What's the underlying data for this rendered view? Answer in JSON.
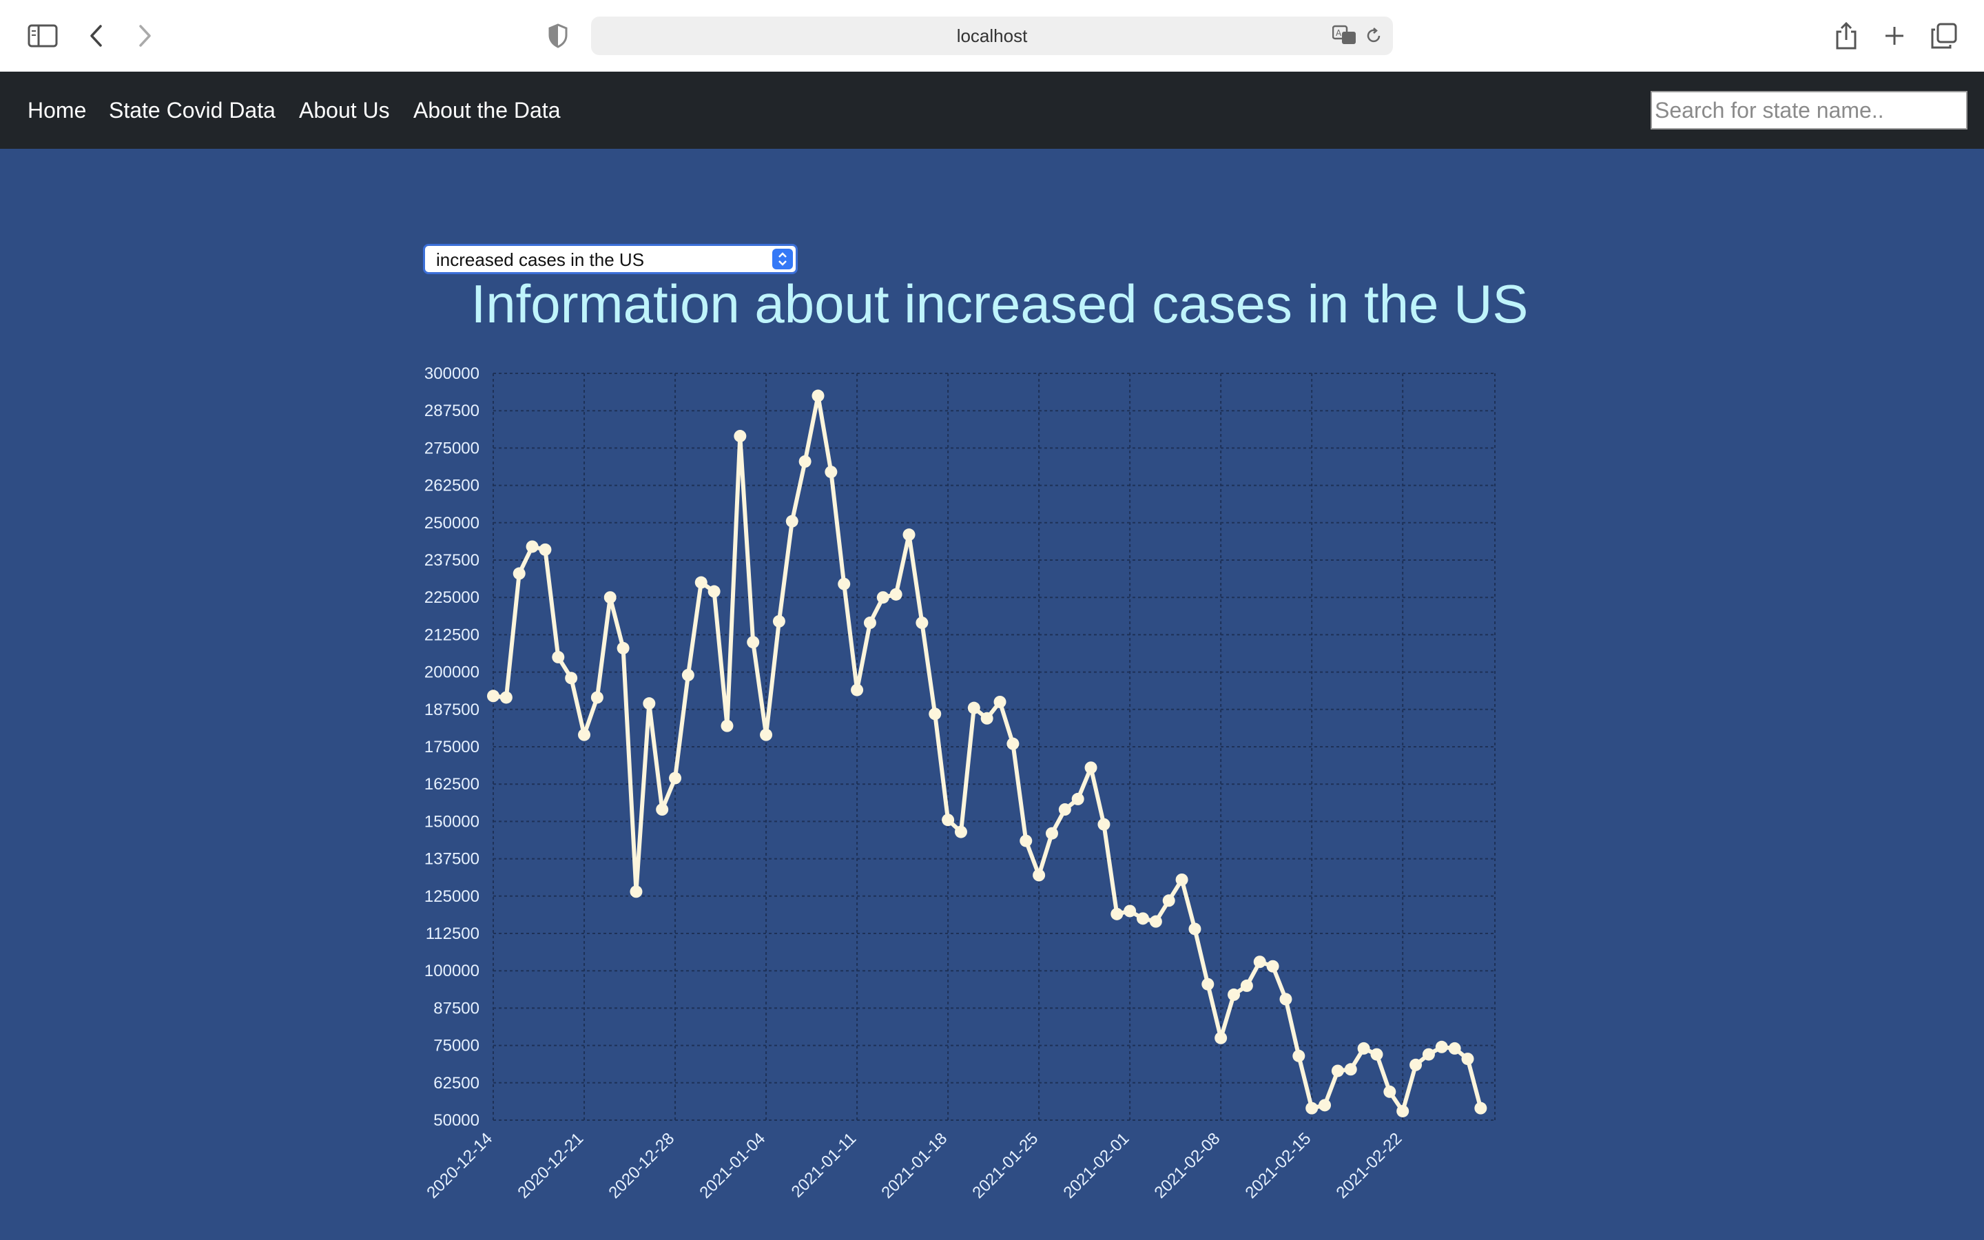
{
  "browser": {
    "url": "localhost"
  },
  "nav": {
    "links": [
      "Home",
      "State Covid Data",
      "About Us",
      "About the Data"
    ],
    "search_placeholder": "Search for state name.."
  },
  "selector": {
    "selected": "increased cases in the US"
  },
  "page": {
    "title": "Information about increased cases in the US"
  },
  "colors": {
    "background": "#2f4d84",
    "navbar": "#212529",
    "title": "#bff4fb",
    "line": "#fcf5dc",
    "tick": "#e6f1ff"
  },
  "chart_data": {
    "type": "line",
    "title": "",
    "xlabel": "",
    "ylabel": "",
    "ylim": [
      50000,
      300000
    ],
    "y_ticks": [
      50000,
      62500,
      75000,
      87500,
      100000,
      112500,
      125000,
      137500,
      150000,
      162500,
      175000,
      187500,
      200000,
      212500,
      225000,
      237500,
      250000,
      262500,
      275000,
      287500,
      300000
    ],
    "x_ticks": [
      "2020-12-14",
      "2020-12-21",
      "2020-12-28",
      "2021-01-04",
      "2021-01-11",
      "2021-01-18",
      "2021-01-25",
      "2021-02-01",
      "2021-02-08",
      "2021-02-15",
      "2021-02-22"
    ],
    "grid": true,
    "series": [
      {
        "name": "",
        "x": [
          "2020-12-14",
          "2020-12-15",
          "2020-12-16",
          "2020-12-17",
          "2020-12-18",
          "2020-12-19",
          "2020-12-20",
          "2020-12-21",
          "2020-12-22",
          "2020-12-23",
          "2020-12-24",
          "2020-12-25",
          "2020-12-26",
          "2020-12-27",
          "2020-12-28",
          "2020-12-29",
          "2020-12-30",
          "2020-12-31",
          "2021-01-01",
          "2021-01-02",
          "2021-01-03",
          "2021-01-04",
          "2021-01-05",
          "2021-01-06",
          "2021-01-07",
          "2021-01-08",
          "2021-01-09",
          "2021-01-10",
          "2021-01-11",
          "2021-01-12",
          "2021-01-13",
          "2021-01-14",
          "2021-01-15",
          "2021-01-16",
          "2021-01-17",
          "2021-01-18",
          "2021-01-19",
          "2021-01-20",
          "2021-01-21",
          "2021-01-22",
          "2021-01-23",
          "2021-01-24",
          "2021-01-25",
          "2021-01-26",
          "2021-01-27",
          "2021-01-28",
          "2021-01-29",
          "2021-01-30",
          "2021-01-31",
          "2021-02-01",
          "2021-02-02",
          "2021-02-03",
          "2021-02-04",
          "2021-02-05",
          "2021-02-06",
          "2021-02-07",
          "2021-02-08",
          "2021-02-09",
          "2021-02-10",
          "2021-02-11",
          "2021-02-12",
          "2021-02-13",
          "2021-02-14",
          "2021-02-15",
          "2021-02-16",
          "2021-02-17",
          "2021-02-18",
          "2021-02-19",
          "2021-02-20",
          "2021-02-21",
          "2021-02-22",
          "2021-02-23",
          "2021-02-24",
          "2021-02-25",
          "2021-02-26",
          "2021-02-27",
          "2021-02-28"
        ],
        "values": [
          192000,
          191500,
          233000,
          242000,
          241000,
          205000,
          198000,
          179000,
          191500,
          225000,
          208000,
          126500,
          189500,
          154000,
          164500,
          199000,
          230000,
          227000,
          182000,
          279000,
          210000,
          179000,
          217000,
          250500,
          270500,
          292500,
          267000,
          229500,
          194000,
          216500,
          225000,
          226000,
          246000,
          216500,
          186000,
          150500,
          146500,
          188000,
          184500,
          190000,
          176000,
          143500,
          132000,
          146000,
          154000,
          157500,
          168000,
          149000,
          119000,
          120000,
          117500,
          116500,
          123500,
          130500,
          114000,
          95500,
          77500,
          92000,
          95000,
          103000,
          101500,
          90500,
          71500,
          54000,
          55000,
          66500,
          67000,
          74000,
          72000,
          59500,
          53000,
          68500,
          72000,
          74500,
          74000,
          70500,
          54000
        ]
      }
    ]
  }
}
